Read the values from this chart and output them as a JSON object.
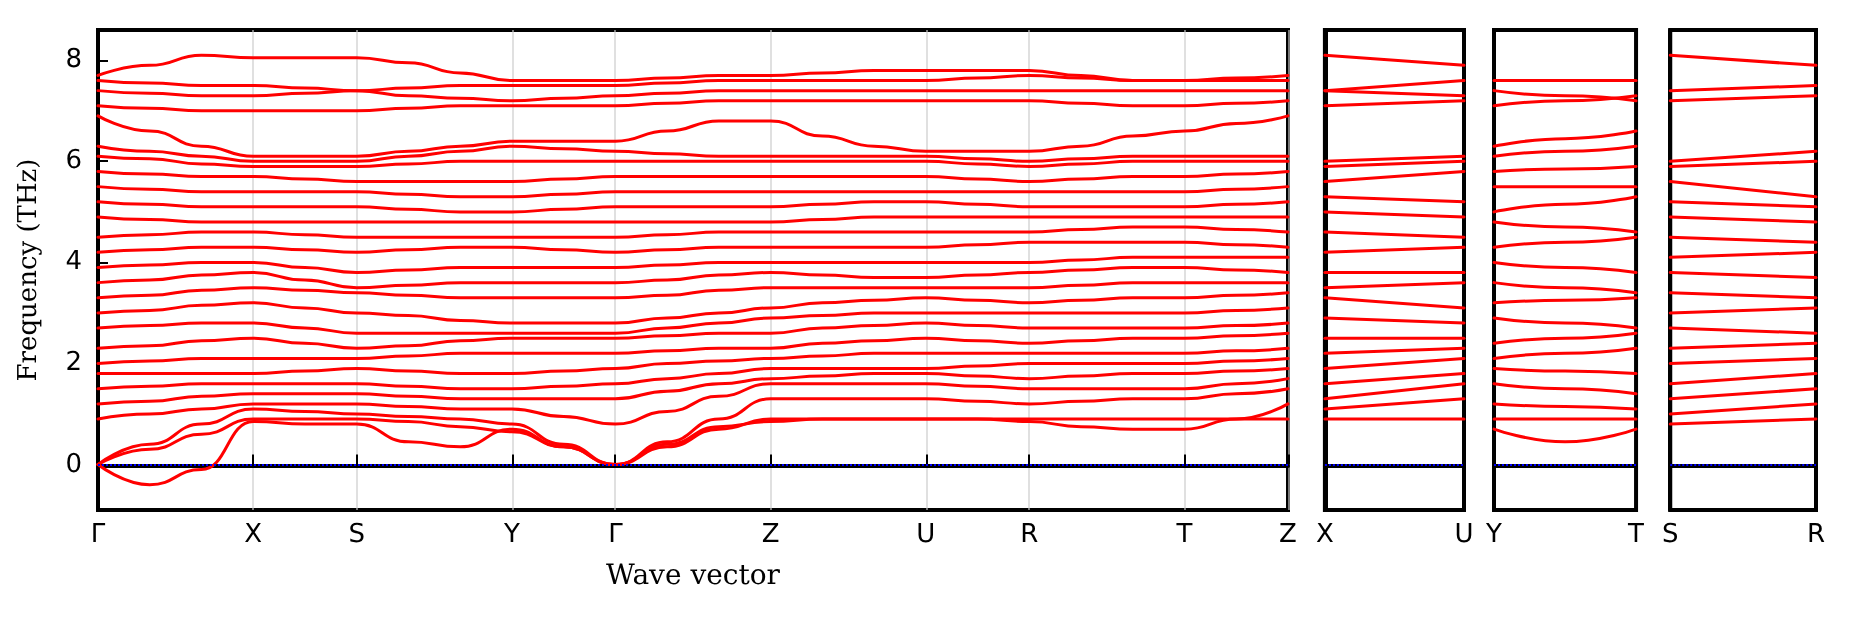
{
  "chart_data": [
    {
      "type": "line",
      "xlabel": "Wave vector",
      "ylabel": "Frequency (THz)",
      "marker": "none",
      "line_style": "solid",
      "grid": "x",
      "ylim": [
        -0.9,
        8.6
      ],
      "yticks": [
        0,
        2,
        4,
        6,
        8
      ],
      "categories": [
        "Γ",
        null,
        null,
        "X",
        null,
        "S",
        null,
        null,
        "Y",
        null,
        "Γ",
        null,
        null,
        "Z",
        null,
        null,
        "U",
        null,
        "R",
        null,
        null,
        "T",
        null,
        "Z"
      ],
      "ref_lines": [
        {
          "axis": "y",
          "value": 0,
          "color": "#0000ff",
          "line_style": "dotted"
        }
      ],
      "series": [
        {
          "color": "#ff0000",
          "values": [
            0,
            -0.4,
            -0.1,
            0.85,
            0.8,
            0.8,
            0.45,
            0.35,
            0.7,
            0.35,
            0,
            0.4,
            0.75,
            0.85,
            0.9,
            0.9,
            0.9,
            0.9,
            0.85,
            0.75,
            0.7,
            0.7,
            0.9,
            1.2
          ]
        },
        {
          "color": "#ff0000",
          "values": [
            0,
            0.3,
            0.6,
            0.9,
            0.9,
            0.9,
            0.85,
            0.75,
            0.65,
            0.35,
            0,
            0.35,
            0.7,
            0.9,
            0.9,
            0.9,
            0.9,
            0.9,
            0.9,
            0.9,
            0.9,
            0.9,
            0.9,
            0.9
          ]
        },
        {
          "color": "#ff0000",
          "values": [
            0,
            0.4,
            0.8,
            1.1,
            1.05,
            1.0,
            0.95,
            0.9,
            0.8,
            0.4,
            0,
            0.45,
            0.9,
            1.3,
            1.3,
            1.3,
            1.3,
            1.25,
            1.2,
            1.25,
            1.3,
            1.3,
            1.4,
            1.5
          ]
        },
        {
          "color": "#ff0000",
          "values": [
            0.9,
            1.0,
            1.1,
            1.2,
            1.2,
            1.2,
            1.15,
            1.1,
            1.1,
            0.95,
            0.8,
            1.05,
            1.35,
            1.6,
            1.6,
            1.6,
            1.6,
            1.55,
            1.5,
            1.5,
            1.5,
            1.5,
            1.6,
            1.7
          ]
        },
        {
          "color": "#ff0000",
          "values": [
            1.2,
            1.25,
            1.35,
            1.4,
            1.4,
            1.4,
            1.35,
            1.3,
            1.3,
            1.3,
            1.3,
            1.45,
            1.6,
            1.7,
            1.75,
            1.8,
            1.8,
            1.75,
            1.7,
            1.75,
            1.8,
            1.8,
            1.85,
            1.9
          ]
        },
        {
          "color": "#ff0000",
          "values": [
            1.5,
            1.55,
            1.6,
            1.6,
            1.6,
            1.6,
            1.55,
            1.5,
            1.5,
            1.55,
            1.6,
            1.7,
            1.8,
            1.9,
            1.9,
            1.9,
            1.9,
            1.95,
            2.0,
            2.0,
            2.0,
            2.0,
            2.05,
            2.1
          ]
        },
        {
          "color": "#ff0000",
          "values": [
            1.8,
            1.8,
            1.8,
            1.8,
            1.85,
            1.9,
            1.85,
            1.8,
            1.8,
            1.85,
            1.9,
            2.0,
            2.05,
            2.1,
            2.15,
            2.2,
            2.2,
            2.2,
            2.2,
            2.2,
            2.2,
            2.2,
            2.25,
            2.3
          ]
        },
        {
          "color": "#ff0000",
          "values": [
            2.0,
            2.05,
            2.1,
            2.1,
            2.1,
            2.1,
            2.15,
            2.2,
            2.2,
            2.2,
            2.2,
            2.25,
            2.3,
            2.3,
            2.4,
            2.45,
            2.5,
            2.45,
            2.4,
            2.45,
            2.5,
            2.5,
            2.55,
            2.6
          ]
        },
        {
          "color": "#ff0000",
          "values": [
            2.3,
            2.35,
            2.45,
            2.5,
            2.4,
            2.3,
            2.35,
            2.45,
            2.5,
            2.5,
            2.5,
            2.55,
            2.6,
            2.6,
            2.7,
            2.75,
            2.8,
            2.75,
            2.7,
            2.7,
            2.7,
            2.7,
            2.75,
            2.8
          ]
        },
        {
          "color": "#ff0000",
          "values": [
            2.7,
            2.75,
            2.8,
            2.8,
            2.7,
            2.6,
            2.6,
            2.6,
            2.6,
            2.6,
            2.6,
            2.7,
            2.8,
            2.9,
            2.95,
            3.0,
            3.0,
            3.0,
            3.0,
            3.0,
            3.0,
            3.0,
            3.05,
            3.1
          ]
        },
        {
          "color": "#ff0000",
          "values": [
            3.0,
            3.05,
            3.15,
            3.2,
            3.1,
            3.0,
            2.95,
            2.85,
            2.8,
            2.8,
            2.8,
            2.9,
            3.0,
            3.1,
            3.2,
            3.25,
            3.3,
            3.25,
            3.2,
            3.25,
            3.3,
            3.3,
            3.35,
            3.4
          ]
        },
        {
          "color": "#ff0000",
          "values": [
            3.3,
            3.35,
            3.45,
            3.5,
            3.45,
            3.4,
            3.35,
            3.3,
            3.3,
            3.3,
            3.3,
            3.35,
            3.45,
            3.5,
            3.5,
            3.5,
            3.5,
            3.5,
            3.5,
            3.55,
            3.6,
            3.6,
            3.6,
            3.6
          ]
        },
        {
          "color": "#ff0000",
          "values": [
            3.6,
            3.65,
            3.75,
            3.8,
            3.65,
            3.5,
            3.55,
            3.6,
            3.6,
            3.6,
            3.6,
            3.65,
            3.75,
            3.8,
            3.75,
            3.7,
            3.7,
            3.75,
            3.8,
            3.85,
            3.9,
            3.9,
            3.85,
            3.8
          ]
        },
        {
          "color": "#ff0000",
          "values": [
            3.9,
            3.95,
            4.0,
            4.0,
            3.9,
            3.8,
            3.85,
            3.9,
            3.9,
            3.9,
            3.9,
            3.95,
            4.0,
            4.0,
            4.0,
            4.0,
            4.0,
            4.0,
            4.0,
            4.05,
            4.1,
            4.1,
            4.1,
            4.1
          ]
        },
        {
          "color": "#ff0000",
          "values": [
            4.2,
            4.25,
            4.3,
            4.3,
            4.25,
            4.2,
            4.25,
            4.3,
            4.3,
            4.25,
            4.2,
            4.25,
            4.3,
            4.3,
            4.3,
            4.3,
            4.3,
            4.35,
            4.4,
            4.4,
            4.4,
            4.4,
            4.35,
            4.3
          ]
        },
        {
          "color": "#ff0000",
          "values": [
            4.5,
            4.55,
            4.6,
            4.6,
            4.55,
            4.5,
            4.5,
            4.5,
            4.5,
            4.5,
            4.5,
            4.55,
            4.6,
            4.6,
            4.6,
            4.6,
            4.6,
            4.6,
            4.6,
            4.65,
            4.7,
            4.7,
            4.65,
            4.6
          ]
        },
        {
          "color": "#ff0000",
          "values": [
            4.9,
            4.85,
            4.8,
            4.8,
            4.8,
            4.8,
            4.8,
            4.8,
            4.8,
            4.8,
            4.8,
            4.8,
            4.8,
            4.8,
            4.85,
            4.9,
            4.9,
            4.9,
            4.9,
            4.9,
            4.9,
            4.9,
            4.9,
            4.9
          ]
        },
        {
          "color": "#ff0000",
          "values": [
            5.2,
            5.15,
            5.1,
            5.1,
            5.1,
            5.1,
            5.05,
            5.0,
            5.0,
            5.05,
            5.1,
            5.1,
            5.1,
            5.1,
            5.15,
            5.2,
            5.2,
            5.15,
            5.1,
            5.1,
            5.1,
            5.1,
            5.15,
            5.2
          ]
        },
        {
          "color": "#ff0000",
          "values": [
            5.5,
            5.45,
            5.4,
            5.4,
            5.4,
            5.4,
            5.35,
            5.3,
            5.3,
            5.35,
            5.4,
            5.4,
            5.4,
            5.4,
            5.4,
            5.4,
            5.4,
            5.4,
            5.4,
            5.4,
            5.4,
            5.4,
            5.45,
            5.5
          ]
        },
        {
          "color": "#ff0000",
          "values": [
            5.8,
            5.75,
            5.7,
            5.7,
            5.65,
            5.6,
            5.6,
            5.6,
            5.6,
            5.65,
            5.7,
            5.7,
            5.7,
            5.7,
            5.7,
            5.7,
            5.7,
            5.65,
            5.6,
            5.65,
            5.7,
            5.7,
            5.75,
            5.8
          ]
        },
        {
          "color": "#ff0000",
          "values": [
            6.1,
            6.05,
            5.95,
            5.9,
            5.9,
            5.9,
            5.95,
            6.0,
            6.0,
            6.0,
            6.0,
            6.0,
            6.0,
            6.0,
            6.0,
            6.0,
            6.0,
            5.95,
            5.9,
            5.95,
            6.0,
            6.0,
            6.0,
            6.0
          ]
        },
        {
          "color": "#ff0000",
          "values": [
            6.3,
            6.2,
            6.1,
            6.0,
            6.0,
            6.0,
            6.1,
            6.2,
            6.3,
            6.25,
            6.2,
            6.15,
            6.1,
            6.1,
            6.1,
            6.1,
            6.1,
            6.05,
            6.0,
            6.05,
            6.1,
            6.1,
            6.1,
            6.1
          ]
        },
        {
          "color": "#ff0000",
          "values": [
            6.9,
            6.6,
            6.3,
            6.1,
            6.1,
            6.1,
            6.2,
            6.3,
            6.4,
            6.4,
            6.4,
            6.6,
            6.8,
            6.8,
            6.5,
            6.3,
            6.2,
            6.2,
            6.2,
            6.3,
            6.5,
            6.6,
            6.75,
            6.9
          ]
        },
        {
          "color": "#ff0000",
          "values": [
            7.1,
            7.05,
            7.0,
            7.0,
            7.0,
            7.0,
            7.05,
            7.1,
            7.1,
            7.1,
            7.1,
            7.15,
            7.2,
            7.2,
            7.2,
            7.2,
            7.2,
            7.2,
            7.2,
            7.15,
            7.1,
            7.1,
            7.15,
            7.2
          ]
        },
        {
          "color": "#ff0000",
          "values": [
            7.4,
            7.35,
            7.3,
            7.3,
            7.35,
            7.4,
            7.3,
            7.25,
            7.2,
            7.25,
            7.3,
            7.35,
            7.4,
            7.4,
            7.4,
            7.4,
            7.4,
            7.4,
            7.4,
            7.4,
            7.4,
            7.4,
            7.4,
            7.4
          ]
        },
        {
          "color": "#ff0000",
          "values": [
            7.6,
            7.55,
            7.5,
            7.5,
            7.45,
            7.4,
            7.45,
            7.5,
            7.5,
            7.5,
            7.5,
            7.55,
            7.6,
            7.6,
            7.6,
            7.6,
            7.6,
            7.65,
            7.7,
            7.65,
            7.6,
            7.6,
            7.6,
            7.6
          ]
        },
        {
          "color": "#ff0000",
          "values": [
            7.7,
            7.9,
            8.1,
            8.05,
            8.05,
            8.05,
            7.95,
            7.75,
            7.6,
            7.6,
            7.6,
            7.65,
            7.7,
            7.7,
            7.75,
            7.8,
            7.8,
            7.8,
            7.8,
            7.7,
            7.6,
            7.6,
            7.65,
            7.7
          ]
        }
      ]
    },
    {
      "type": "line",
      "marker": "none",
      "line_style": "solid",
      "tick_labels": "x",
      "ylim": [
        -0.9,
        8.6
      ],
      "categories": [
        "X",
        "U"
      ],
      "ref_lines": [
        {
          "axis": "y",
          "value": 0,
          "color": "#0000ff",
          "line_style": "dotted"
        }
      ],
      "series": [
        {
          "color": "#ff0000",
          "values": [
            0.9,
            0.9
          ]
        },
        {
          "color": "#ff0000",
          "values": [
            1.1,
            1.3
          ]
        },
        {
          "color": "#ff0000",
          "values": [
            1.3,
            1.6
          ]
        },
        {
          "color": "#ff0000",
          "values": [
            1.6,
            1.8
          ]
        },
        {
          "color": "#ff0000",
          "values": [
            1.9,
            2.1
          ]
        },
        {
          "color": "#ff0000",
          "values": [
            2.2,
            2.3
          ]
        },
        {
          "color": "#ff0000",
          "values": [
            2.5,
            2.5
          ]
        },
        {
          "color": "#ff0000",
          "values": [
            2.9,
            2.8
          ]
        },
        {
          "color": "#ff0000",
          "values": [
            3.3,
            3.1
          ]
        },
        {
          "color": "#ff0000",
          "values": [
            3.5,
            3.6
          ]
        },
        {
          "color": "#ff0000",
          "values": [
            3.8,
            3.8
          ]
        },
        {
          "color": "#ff0000",
          "values": [
            4.2,
            4.3
          ]
        },
        {
          "color": "#ff0000",
          "values": [
            4.6,
            4.5
          ]
        },
        {
          "color": "#ff0000",
          "values": [
            5.0,
            4.9
          ]
        },
        {
          "color": "#ff0000",
          "values": [
            5.3,
            5.2
          ]
        },
        {
          "color": "#ff0000",
          "values": [
            5.6,
            5.8
          ]
        },
        {
          "color": "#ff0000",
          "values": [
            5.9,
            6.0
          ]
        },
        {
          "color": "#ff0000",
          "values": [
            6.0,
            6.1
          ]
        },
        {
          "color": "#ff0000",
          "values": [
            7.1,
            7.2
          ]
        },
        {
          "color": "#ff0000",
          "values": [
            7.4,
            7.3
          ]
        },
        {
          "color": "#ff0000",
          "values": [
            7.4,
            7.6
          ]
        },
        {
          "color": "#ff0000",
          "values": [
            8.1,
            7.9
          ]
        }
      ]
    },
    {
      "type": "line",
      "marker": "none",
      "line_style": "solid",
      "tick_labels": "x",
      "ylim": [
        -0.9,
        8.6
      ],
      "categories": [
        "Y",
        null,
        "T"
      ],
      "ref_lines": [
        {
          "axis": "y",
          "value": 0,
          "color": "#0000ff",
          "line_style": "dotted"
        }
      ],
      "series": [
        {
          "color": "#ff0000",
          "values": [
            0.7,
            0.45,
            0.7
          ]
        },
        {
          "color": "#ff0000",
          "values": [
            0.9,
            0.9,
            0.9
          ]
        },
        {
          "color": "#ff0000",
          "values": [
            1.2,
            1.15,
            1.1
          ]
        },
        {
          "color": "#ff0000",
          "values": [
            1.6,
            1.5,
            1.4
          ]
        },
        {
          "color": "#ff0000",
          "values": [
            1.9,
            1.85,
            1.8
          ]
        },
        {
          "color": "#ff0000",
          "values": [
            2.1,
            2.2,
            2.3
          ]
        },
        {
          "color": "#ff0000",
          "values": [
            2.4,
            2.5,
            2.6
          ]
        },
        {
          "color": "#ff0000",
          "values": [
            2.9,
            2.8,
            2.7
          ]
        },
        {
          "color": "#ff0000",
          "values": [
            3.2,
            3.25,
            3.3
          ]
        },
        {
          "color": "#ff0000",
          "values": [
            3.6,
            3.5,
            3.4
          ]
        },
        {
          "color": "#ff0000",
          "values": [
            4.0,
            3.9,
            3.8
          ]
        },
        {
          "color": "#ff0000",
          "values": [
            4.3,
            4.4,
            4.5
          ]
        },
        {
          "color": "#ff0000",
          "values": [
            4.8,
            4.7,
            4.6
          ]
        },
        {
          "color": "#ff0000",
          "values": [
            5.0,
            5.15,
            5.3
          ]
        },
        {
          "color": "#ff0000",
          "values": [
            5.5,
            5.5,
            5.5
          ]
        },
        {
          "color": "#ff0000",
          "values": [
            5.8,
            5.85,
            5.9
          ]
        },
        {
          "color": "#ff0000",
          "values": [
            6.1,
            6.2,
            6.3
          ]
        },
        {
          "color": "#ff0000",
          "values": [
            6.3,
            6.45,
            6.6
          ]
        },
        {
          "color": "#ff0000",
          "values": [
            7.1,
            7.2,
            7.3
          ]
        },
        {
          "color": "#ff0000",
          "values": [
            7.4,
            7.3,
            7.2
          ]
        },
        {
          "color": "#ff0000",
          "values": [
            7.6,
            7.6,
            7.6
          ]
        }
      ]
    },
    {
      "type": "line",
      "marker": "none",
      "line_style": "solid",
      "tick_labels": "x",
      "ylim": [
        -0.9,
        8.6
      ],
      "categories": [
        "S",
        "R"
      ],
      "ref_lines": [
        {
          "axis": "y",
          "value": 0,
          "color": "#0000ff",
          "line_style": "dotted"
        }
      ],
      "series": [
        {
          "color": "#ff0000",
          "values": [
            0.8,
            0.9
          ]
        },
        {
          "color": "#ff0000",
          "values": [
            1.0,
            1.2
          ]
        },
        {
          "color": "#ff0000",
          "values": [
            1.3,
            1.5
          ]
        },
        {
          "color": "#ff0000",
          "values": [
            1.6,
            1.8
          ]
        },
        {
          "color": "#ff0000",
          "values": [
            2.0,
            2.1
          ]
        },
        {
          "color": "#ff0000",
          "values": [
            2.3,
            2.4
          ]
        },
        {
          "color": "#ff0000",
          "values": [
            2.7,
            2.6
          ]
        },
        {
          "color": "#ff0000",
          "values": [
            3.0,
            3.1
          ]
        },
        {
          "color": "#ff0000",
          "values": [
            3.4,
            3.3
          ]
        },
        {
          "color": "#ff0000",
          "values": [
            3.8,
            3.7
          ]
        },
        {
          "color": "#ff0000",
          "values": [
            4.1,
            4.2
          ]
        },
        {
          "color": "#ff0000",
          "values": [
            4.5,
            4.4
          ]
        },
        {
          "color": "#ff0000",
          "values": [
            4.9,
            4.8
          ]
        },
        {
          "color": "#ff0000",
          "values": [
            5.2,
            5.1
          ]
        },
        {
          "color": "#ff0000",
          "values": [
            5.6,
            5.3
          ]
        },
        {
          "color": "#ff0000",
          "values": [
            5.9,
            6.0
          ]
        },
        {
          "color": "#ff0000",
          "values": [
            6.0,
            6.2
          ]
        },
        {
          "color": "#ff0000",
          "values": [
            7.2,
            7.3
          ]
        },
        {
          "color": "#ff0000",
          "values": [
            7.4,
            7.5
          ]
        },
        {
          "color": "#ff0000",
          "values": [
            8.1,
            7.9
          ]
        }
      ]
    }
  ]
}
